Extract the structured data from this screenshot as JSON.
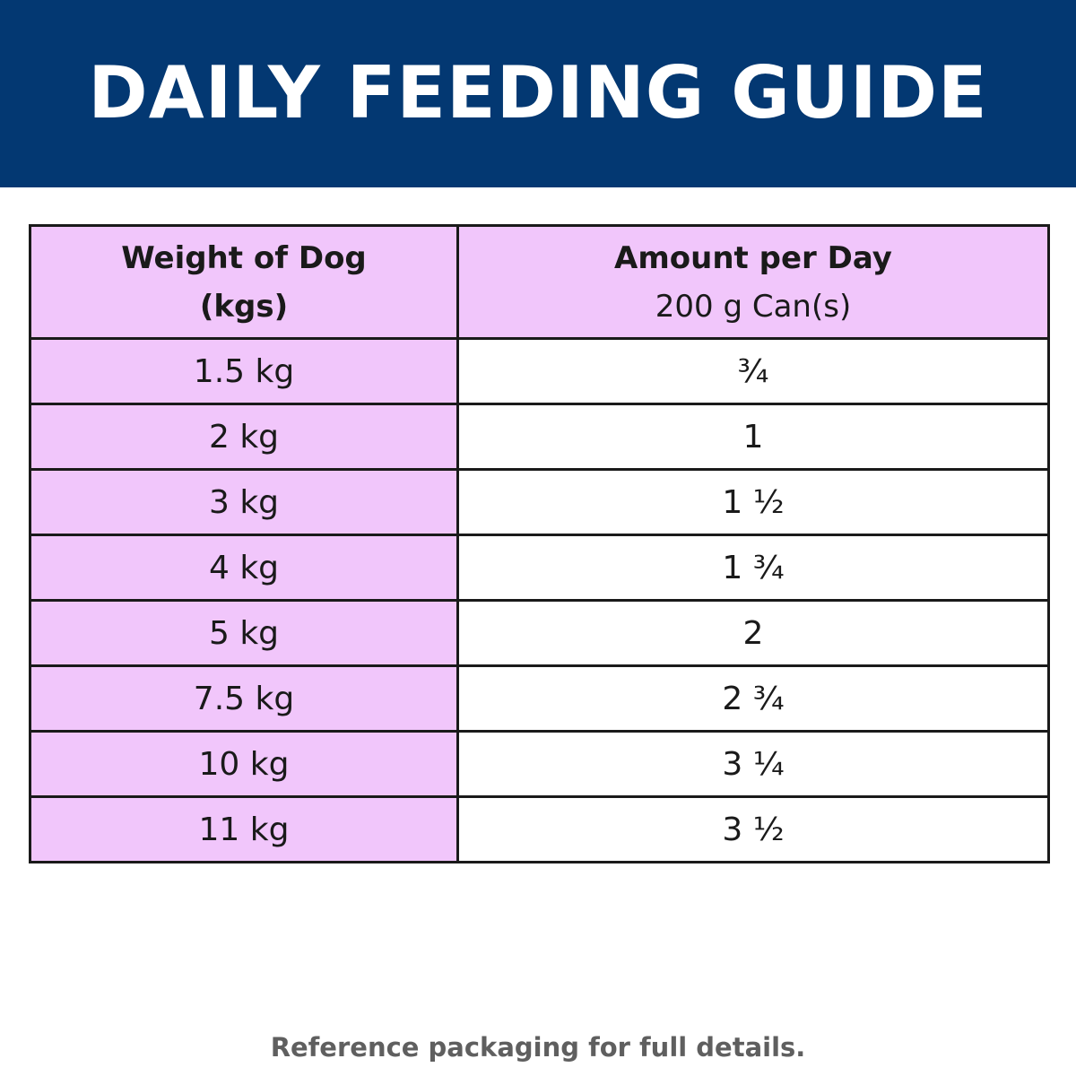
{
  "header": {
    "title": "DAILY FEEDING GUIDE"
  },
  "colors": {
    "banner": "#033872",
    "weight_column": "#f1c6fb",
    "amount_column": "#ffffff",
    "border": "#1a1a1a",
    "footnote": "#5f5f5f"
  },
  "table": {
    "columns": [
      {
        "title": "Weight of Dog",
        "subtitle": "(kgs)"
      },
      {
        "title": "Amount per Day",
        "subtitle": "200 g Can(s)"
      }
    ],
    "rows": [
      {
        "weight": "1.5 kg",
        "amount": "¾"
      },
      {
        "weight": "2 kg",
        "amount": "1"
      },
      {
        "weight": "3 kg",
        "amount": "1 ½"
      },
      {
        "weight": "4 kg",
        "amount": "1 ¾"
      },
      {
        "weight": "5 kg",
        "amount": "2"
      },
      {
        "weight": "7.5 kg",
        "amount": "2 ¾"
      },
      {
        "weight": "10 kg",
        "amount": "3 ¼"
      },
      {
        "weight": "11 kg",
        "amount": "3 ½"
      }
    ]
  },
  "footer": {
    "note": "Reference packaging for full details."
  }
}
